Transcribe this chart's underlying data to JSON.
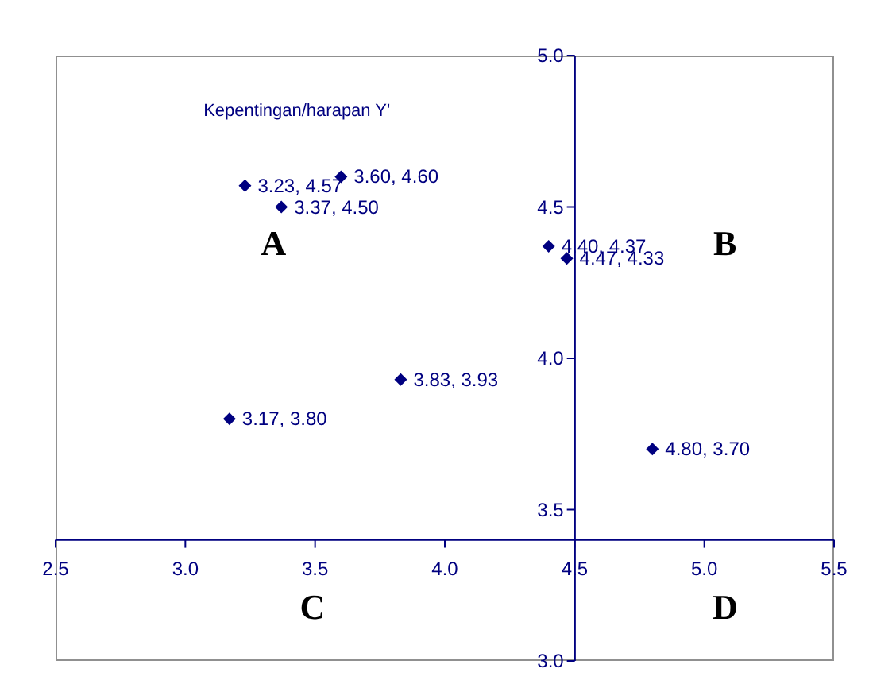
{
  "chart_data": {
    "type": "scatter",
    "ylabel": "Kepentingan/harapan Y'",
    "annotations": [
      "A",
      "B",
      "C",
      "D"
    ],
    "series": [
      {
        "color": "#000080",
        "x": [
          3.23,
          3.6,
          3.37,
          4.4,
          4.47,
          3.83,
          3.17,
          4.8
        ],
        "values": [
          4.57,
          4.6,
          4.5,
          4.37,
          4.33,
          3.93,
          3.8,
          3.7
        ],
        "value_labels": [
          "3.23, 4.57",
          "3.60, 4.60",
          "3.37, 4.50",
          "4.40, 4.37",
          "4.47, 4.33",
          "3.83, 3.93",
          "3.17, 3.80",
          "4.80, 3.70"
        ]
      }
    ],
    "xlim": [
      2.5,
      5.5
    ],
    "xticks": [
      2.5,
      {
        "value": 3,
        "label": "3.0"
      },
      3.5,
      {
        "value": 4,
        "label": "4.0"
      },
      4.5,
      {
        "value": 5,
        "label": "5.0"
      },
      5.5
    ],
    "ylim": [
      3,
      5
    ],
    "yticks": [
      {
        "value": 3,
        "label": "3.0"
      },
      3.5,
      {
        "value": 4,
        "label": "4.0"
      },
      4.5,
      {
        "value": 5,
        "label": "5.0"
      }
    ],
    "marker": "diamond",
    "grid": false,
    "legend": false
  }
}
